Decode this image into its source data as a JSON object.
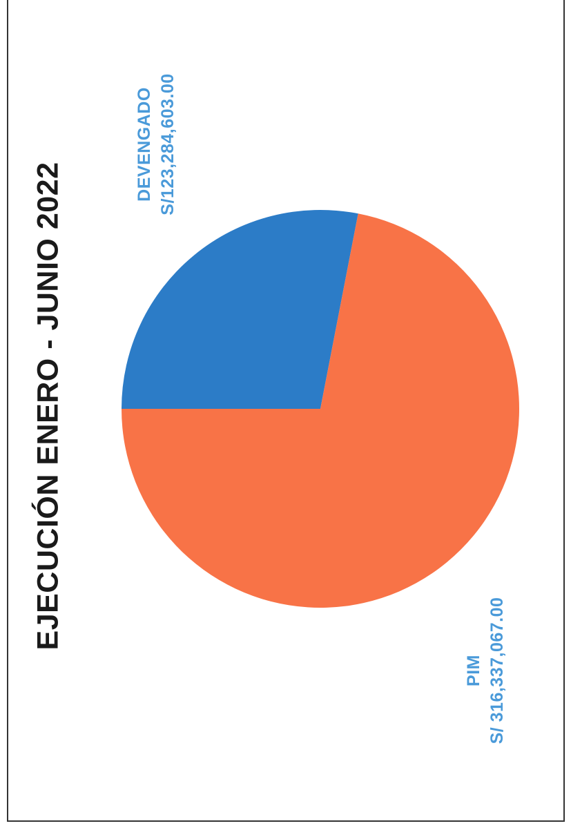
{
  "colors": {
    "devengado": "#2C7CC7",
    "pim": "#F87347",
    "label": "#4A9AD9",
    "title": "#1a1a1a",
    "frame": "#333333"
  },
  "chart_data": {
    "type": "pie",
    "title": "EJECUCIÓN ENERO - JUNIO 2022",
    "slices": [
      {
        "name": "DEVENGADO",
        "value": 123284603.0,
        "value_label": "S/123,284,603.00",
        "color": "#2C7CC7"
      },
      {
        "name": "PIM",
        "value": 316337067.0,
        "value_label": "S/ 316,337,067.00",
        "color": "#F87347"
      }
    ],
    "legend": "none",
    "data_labels": "outside",
    "orientation": "rotated-90-ccw"
  }
}
